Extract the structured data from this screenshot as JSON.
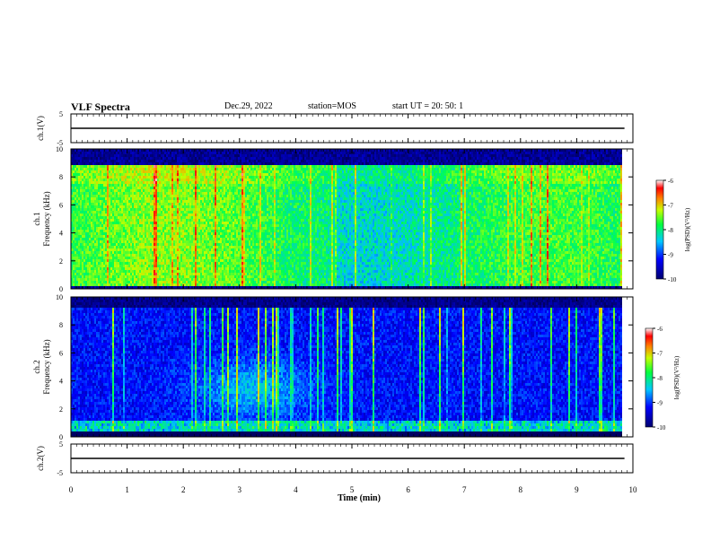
{
  "header": {
    "title": "VLF Spectra",
    "date": "Dec.29, 2022",
    "station": "station=MOS",
    "start": "start  UT =   20: 50: 1"
  },
  "chart_data": [
    {
      "type": "line",
      "panel": "ch1-voltage",
      "ylabel": "ch.1(V)",
      "ylim": [
        -5,
        5
      ],
      "yticks": [
        5,
        -5
      ],
      "x": [
        0,
        1,
        2,
        3,
        4,
        5,
        6,
        7,
        8,
        9,
        9.85
      ],
      "values": [
        0,
        0,
        0,
        0,
        0,
        0,
        0,
        0,
        0,
        0,
        0
      ]
    },
    {
      "type": "heatmap",
      "panel": "ch1-spectrogram",
      "ylabel_top": "ch.1",
      "ylabel": "Frequency (kHz)",
      "ylim": [
        0,
        10
      ],
      "yticks": [
        0,
        2,
        4,
        6,
        8,
        10
      ],
      "xlim": [
        0,
        9.85
      ],
      "colorbar": {
        "label": "log(PSD)(V²/Hz)",
        "range": [
          -10,
          -6
        ],
        "ticks": [
          "-6",
          "-7",
          "-8",
          "-9",
          "-10"
        ]
      }
    },
    {
      "type": "heatmap",
      "panel": "ch2-spectrogram",
      "ylabel_top": "ch.2",
      "ylabel": "Frequency (kHz)",
      "ylim": [
        0,
        10
      ],
      "yticks": [
        0,
        2,
        4,
        6,
        8,
        10
      ],
      "xlim": [
        0,
        9.85
      ],
      "colorbar": {
        "label": "log(PSD)(V²/Hz)",
        "range": [
          -10,
          -6
        ],
        "ticks": [
          "-6",
          "-7",
          "-8",
          "-9",
          "-10"
        ]
      }
    },
    {
      "type": "line",
      "panel": "ch2-voltage",
      "ylabel": "ch.2(V)",
      "ylim": [
        -5,
        5
      ],
      "yticks": [
        5,
        -5
      ],
      "x": [
        0,
        1,
        2,
        3,
        4,
        5,
        6,
        7,
        8,
        9,
        9.85
      ],
      "values": [
        0,
        0,
        0,
        0,
        0,
        0,
        0,
        0,
        0,
        0,
        0
      ]
    }
  ],
  "xaxis": {
    "label": "Time (min)",
    "range": [
      0,
      10
    ],
    "ticks": [
      "0",
      "1",
      "2",
      "3",
      "4",
      "5",
      "6",
      "7",
      "8",
      "9",
      "10"
    ]
  }
}
